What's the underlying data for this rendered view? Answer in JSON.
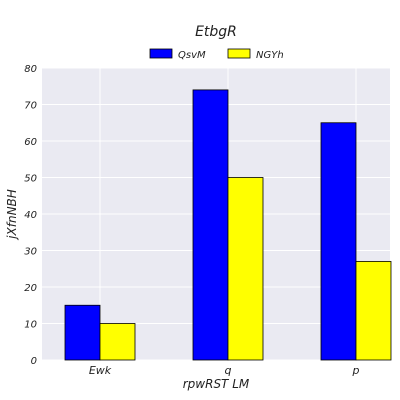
{
  "chart_data": {
    "type": "bar",
    "title": "EtbgR",
    "xlabel": "rpwRST LM",
    "ylabel": "jXfnNBH",
    "categories": [
      "Ewk",
      "q",
      "p"
    ],
    "series": [
      {
        "name": "QsvM",
        "values": [
          15,
          74,
          65
        ],
        "color": "#0000ff"
      },
      {
        "name": "NGYh",
        "values": [
          10,
          50,
          27
        ],
        "color": "#ffff00"
      }
    ],
    "ylim": [
      0,
      80
    ],
    "yticks": [
      0,
      10,
      20,
      30,
      40,
      50,
      60,
      70,
      80
    ],
    "grid": true,
    "legend_position": "top-center",
    "background": "#eaeaf2"
  }
}
